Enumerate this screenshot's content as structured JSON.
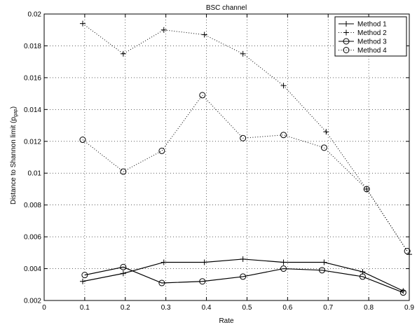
{
  "chart_data": {
    "type": "line",
    "title": "BSC channel",
    "xlabel": "Rate",
    "ylabel_main": "Distance to Shannon limit (p",
    "ylabel_sub": "gap",
    "ylabel_close": ")",
    "xlim": [
      0,
      0.9
    ],
    "ylim": [
      0.002,
      0.02
    ],
    "xticks": [
      0,
      0.1,
      0.2,
      0.3,
      0.4,
      0.5,
      0.6,
      0.7,
      0.8,
      0.9
    ],
    "xtick_labels": [
      "0",
      "0.1",
      "0.2",
      "0.3",
      "0.4",
      "0.5",
      "0.6",
      "0.7",
      "0.8",
      "0.9"
    ],
    "yticks": [
      0.002,
      0.004,
      0.006,
      0.008,
      0.01,
      0.012,
      0.014,
      0.016,
      0.018,
      0.02
    ],
    "ytick_labels": [
      "0.002",
      "0.004",
      "0.006",
      "0.008",
      "0.01",
      "0.012",
      "0.014",
      "0.016",
      "0.018",
      "0.02"
    ],
    "grid": true,
    "legend_position": "top-right",
    "series": [
      {
        "name": "Method 1",
        "line": "solid",
        "marker": "plus",
        "x": [
          0.095,
          0.195,
          0.295,
          0.395,
          0.49,
          0.59,
          0.69,
          0.785,
          0.885
        ],
        "y": [
          0.0032,
          0.0037,
          0.0044,
          0.0044,
          0.0046,
          0.0044,
          0.0044,
          0.0038,
          0.0026
        ]
      },
      {
        "name": "Method 2",
        "line": "dotted",
        "marker": "plus",
        "x": [
          0.095,
          0.195,
          0.295,
          0.395,
          0.49,
          0.59,
          0.695,
          0.795,
          0.9
        ],
        "y": [
          0.0194,
          0.0175,
          0.019,
          0.0187,
          0.0175,
          0.0155,
          0.0126,
          0.009,
          0.0049
        ]
      },
      {
        "name": "Method 3",
        "line": "solid",
        "marker": "circle",
        "x": [
          0.1,
          0.195,
          0.29,
          0.39,
          0.49,
          0.59,
          0.685,
          0.785,
          0.885
        ],
        "y": [
          0.0036,
          0.0041,
          0.0031,
          0.0032,
          0.0035,
          0.004,
          0.0039,
          0.0035,
          0.0025
        ]
      },
      {
        "name": "Method 4",
        "line": "dotted",
        "marker": "circle",
        "x": [
          0.095,
          0.195,
          0.29,
          0.39,
          0.49,
          0.59,
          0.69,
          0.795,
          0.895
        ],
        "y": [
          0.0121,
          0.0101,
          0.0114,
          0.0149,
          0.0122,
          0.0124,
          0.0116,
          0.009,
          0.0051
        ]
      }
    ]
  }
}
